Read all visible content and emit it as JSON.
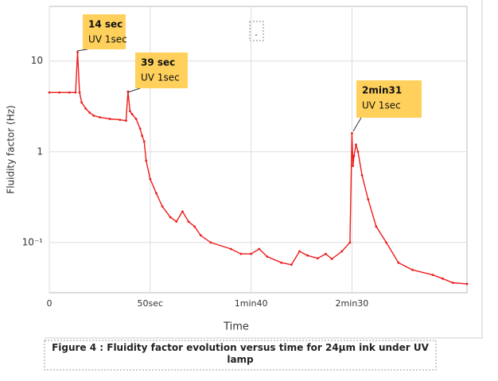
{
  "chart_data": {
    "type": "line",
    "x_label": "Time",
    "y_label": "Fluidity factor (Hz)",
    "caption": "Figure 4 : Fluidity factor  evolution versus time for 24µm ink under UV lamp",
    "log_y": true,
    "grid": true,
    "xlim": [
      0,
      207
    ],
    "ylim": [
      0.028,
      40
    ],
    "xticks": [
      0,
      {
        "value": 50,
        "label": "50sec"
      },
      {
        "value": 100,
        "label": "1min40"
      },
      {
        "value": 150,
        "label": "2min30"
      }
    ],
    "yticks": [
      {
        "value": 0.1,
        "label": "10⁻¹"
      },
      1,
      10
    ],
    "series": [
      {
        "name": "Fluidity factor",
        "color": "#ee1c1c",
        "x": [
          0,
          5,
          10,
          13,
          14,
          15,
          16,
          18,
          20,
          22,
          25,
          30,
          35,
          38,
          39,
          40,
          41,
          43,
          45,
          46,
          47,
          48,
          50,
          53,
          56,
          60,
          63,
          66,
          69,
          72,
          75,
          80,
          90,
          95,
          100,
          104,
          108,
          115,
          120,
          124,
          128,
          133,
          137,
          140,
          145,
          149,
          150,
          150.5,
          151,
          152,
          153,
          155,
          158,
          162,
          167,
          173,
          180,
          190,
          195,
          200,
          207
        ],
        "values": [
          4.5,
          4.5,
          4.5,
          4.5,
          12.5,
          4.5,
          3.5,
          3.0,
          2.7,
          2.5,
          2.4,
          2.3,
          2.25,
          2.2,
          4.6,
          2.8,
          2.6,
          2.3,
          1.8,
          1.5,
          1.3,
          0.8,
          0.5,
          0.35,
          0.25,
          0.19,
          0.17,
          0.22,
          0.17,
          0.15,
          0.12,
          0.1,
          0.085,
          0.075,
          0.075,
          0.085,
          0.07,
          0.06,
          0.057,
          0.08,
          0.072,
          0.067,
          0.075,
          0.066,
          0.08,
          0.1,
          1.6,
          0.7,
          0.9,
          1.2,
          1.0,
          0.55,
          0.3,
          0.15,
          0.1,
          0.06,
          0.05,
          0.044,
          0.04,
          0.036,
          0.035
        ]
      }
    ],
    "annotations": [
      {
        "title": "14 sec",
        "text": "UV 1sec"
      },
      {
        "title": "39 sec",
        "text": "UV 1sec"
      },
      {
        "title": "2min31",
        "text": "UV 1sec"
      }
    ]
  }
}
